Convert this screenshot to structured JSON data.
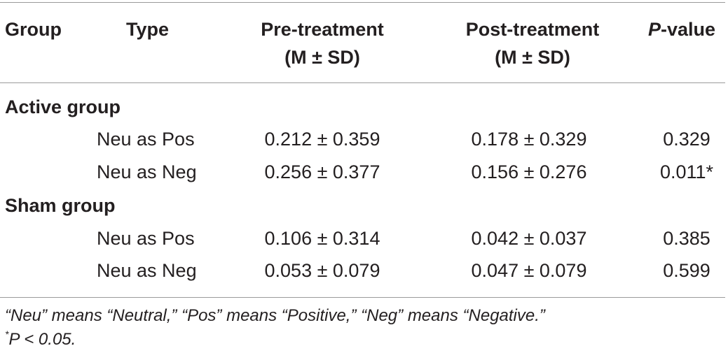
{
  "table": {
    "headers": {
      "group": "Group",
      "type": "Type",
      "pre_line1": "Pre-treatment",
      "pre_line2": "(M ± SD)",
      "post_line1": "Post-treatment",
      "post_line2": "(M ± SD)",
      "pvalue_italic": "P",
      "pvalue_rest": "-value"
    },
    "groups": [
      {
        "name": "Active group",
        "rows": [
          {
            "type": "Neu as Pos",
            "pre": "0.212 ± 0.359",
            "post": "0.178 ± 0.329",
            "p": "0.329"
          },
          {
            "type": "Neu as Neg",
            "pre": "0.256 ± 0.377",
            "post": "0.156 ± 0.276",
            "p": "0.011*"
          }
        ]
      },
      {
        "name": "Sham group",
        "rows": [
          {
            "type": "Neu as Pos",
            "pre": "0.106 ± 0.314",
            "post": "0.042 ± 0.037",
            "p": "0.385"
          },
          {
            "type": "Neu as Neg",
            "pre": "0.053 ± 0.079",
            "post": "0.047 ± 0.079",
            "p": "0.599"
          }
        ]
      }
    ]
  },
  "footnotes": {
    "line1": "“Neu” means “Neutral,” “Pos” means “Positive,” “Neg” means “Negative.”",
    "line2_marker": "*",
    "line2_text": "P < 0.05."
  }
}
